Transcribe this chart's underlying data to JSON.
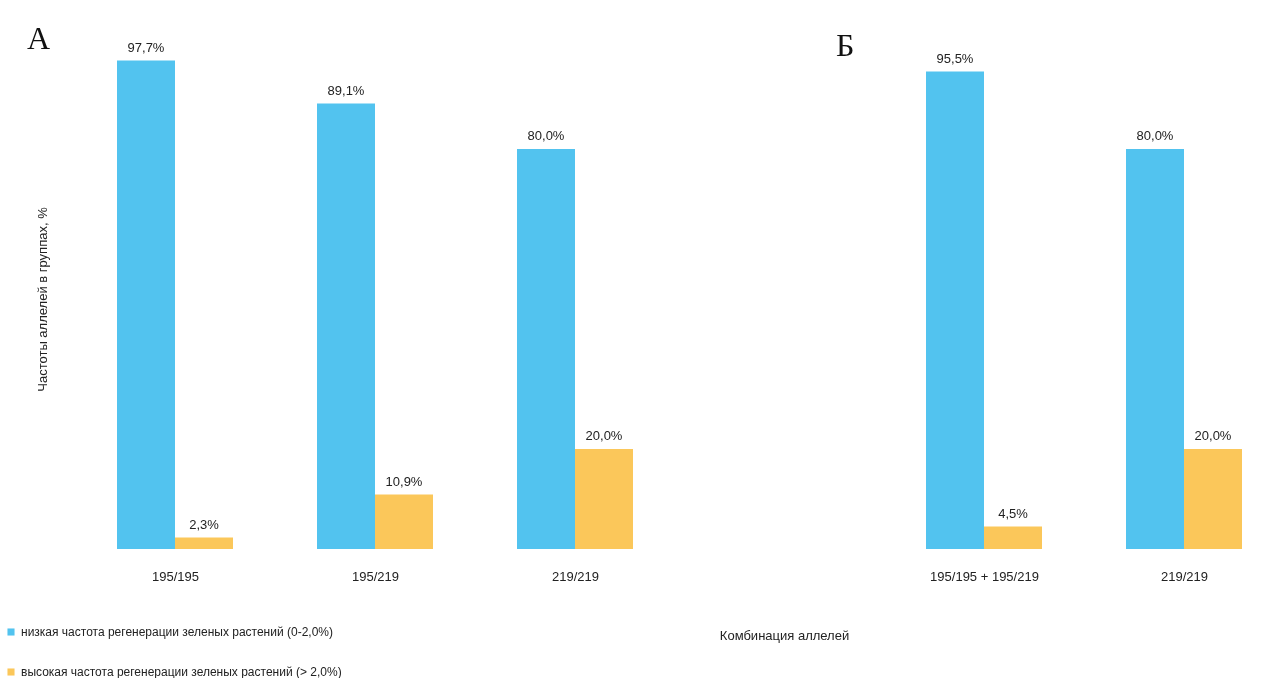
{
  "chart_data": [
    {
      "type": "bar",
      "title": "А",
      "ylabel": "Частоты аллелей в группах, %",
      "categories": [
        "195/195",
        "195/219",
        "219/219"
      ],
      "legend": "bottom",
      "tick_labels": "x",
      "series": [
        {
          "name": "низкая частота регенерации зеленых растений (0-2,0%)",
          "color": "#52c3ef",
          "values": [
            97.7,
            89.1,
            80.0
          ],
          "value_labels": [
            "97,7%",
            "89,1%",
            "80,0%"
          ]
        },
        {
          "name": "высокая частота регенерации зеленых растений (> 2,0%)",
          "color": "#fbc75a",
          "values": [
            2.3,
            10.9,
            20.0
          ],
          "value_labels": [
            "2,3%",
            "10,9%",
            "20,0%"
          ]
        }
      ]
    },
    {
      "type": "bar",
      "title": "Б",
      "xlabel": "Комбинация аллелей",
      "categories": [
        "195/195 + 195/219",
        "219/219"
      ],
      "tick_labels": "x",
      "series": [
        {
          "color": "#52c3ef",
          "values": [
            95.5,
            80.0
          ],
          "value_labels": [
            "95,5%",
            "80,0%"
          ]
        },
        {
          "color": "#fbc75a",
          "values": [
            4.5,
            20.0
          ],
          "value_labels": [
            "4,5%",
            "20,0%"
          ]
        }
      ]
    }
  ]
}
